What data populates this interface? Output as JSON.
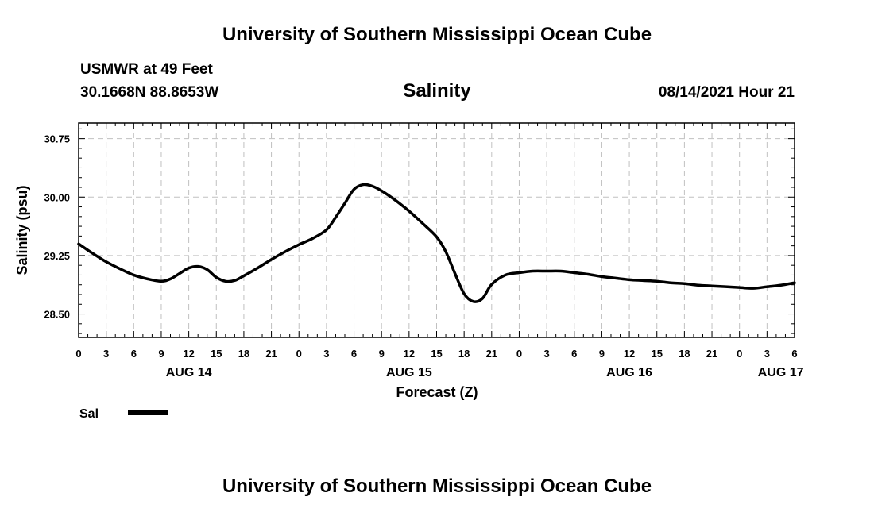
{
  "header": {
    "title": "University of Southern Mississippi Ocean Cube",
    "station": "USMWR at 49 Feet",
    "coords": "30.1668N  88.8653W",
    "chart_title": "Salinity",
    "timestamp": "08/14/2021 Hour 21"
  },
  "footer": {
    "title": "University of Southern Mississippi Ocean Cube"
  },
  "colors": {
    "line": "#000000",
    "grid": "#c0c0c0",
    "background": "#ffffff"
  },
  "chart_data": {
    "type": "line",
    "title": "Salinity",
    "xlabel": "Forecast (Z)",
    "ylabel": "Salinity (psu)",
    "xlim": [
      0,
      78
    ],
    "ylim": [
      28.2,
      30.95
    ],
    "x_unit": "hours from 00Z Aug 14",
    "x_ticks": [
      0,
      3,
      6,
      9,
      12,
      15,
      18,
      21,
      24,
      27,
      30,
      33,
      36,
      39,
      42,
      45,
      48,
      51,
      54,
      57,
      60,
      63,
      66,
      69,
      72,
      75,
      78
    ],
    "x_tick_labels": [
      "0",
      "3",
      "6",
      "9",
      "12",
      "15",
      "18",
      "21",
      "0",
      "3",
      "6",
      "9",
      "12",
      "15",
      "18",
      "21",
      "0",
      "3",
      "6",
      "9",
      "12",
      "15",
      "18",
      "21",
      "0",
      "3",
      "6"
    ],
    "day_labels": [
      {
        "x": 12,
        "label": "AUG 14"
      },
      {
        "x": 36,
        "label": "AUG 15"
      },
      {
        "x": 60,
        "label": "AUG 16"
      },
      {
        "x": 76.5,
        "label": "AUG 17"
      }
    ],
    "y_ticks": [
      28.5,
      29.25,
      30.0,
      30.75
    ],
    "y_tick_labels": [
      "28.50",
      "29.25",
      "30.00",
      "30.75"
    ],
    "legend": {
      "position": "bottom-left",
      "entries": [
        "Sal"
      ]
    },
    "grid": true,
    "series": [
      {
        "name": "Sal",
        "x": [
          0,
          1.5,
          3,
          4.5,
          6,
          7.5,
          9,
          10,
          11,
          12,
          13,
          14,
          15,
          16,
          17,
          18,
          19.5,
          21,
          22.5,
          24,
          25.5,
          27,
          28,
          29,
          30,
          31,
          32,
          33,
          34.5,
          36,
          37.5,
          39,
          40,
          41,
          42,
          43,
          44,
          45,
          46.5,
          48,
          49.5,
          51,
          52.5,
          54,
          55.5,
          57,
          58.5,
          60,
          61.5,
          63,
          64.5,
          66,
          67.5,
          69,
          70.5,
          72,
          73.5,
          75,
          76.5,
          78
        ],
        "y": [
          29.4,
          29.28,
          29.17,
          29.08,
          29.0,
          28.95,
          28.92,
          28.95,
          29.02,
          29.09,
          29.11,
          29.07,
          28.97,
          28.92,
          28.93,
          28.99,
          29.09,
          29.2,
          29.3,
          29.39,
          29.47,
          29.58,
          29.74,
          29.92,
          30.1,
          30.16,
          30.14,
          30.08,
          29.96,
          29.82,
          29.66,
          29.49,
          29.3,
          29.02,
          28.76,
          28.66,
          28.7,
          28.88,
          29.0,
          29.03,
          29.05,
          29.05,
          29.05,
          29.03,
          29.01,
          28.98,
          28.96,
          28.94,
          28.93,
          28.92,
          28.9,
          28.89,
          28.87,
          28.86,
          28.85,
          28.84,
          28.83,
          28.85,
          28.87,
          28.9
        ]
      }
    ]
  }
}
